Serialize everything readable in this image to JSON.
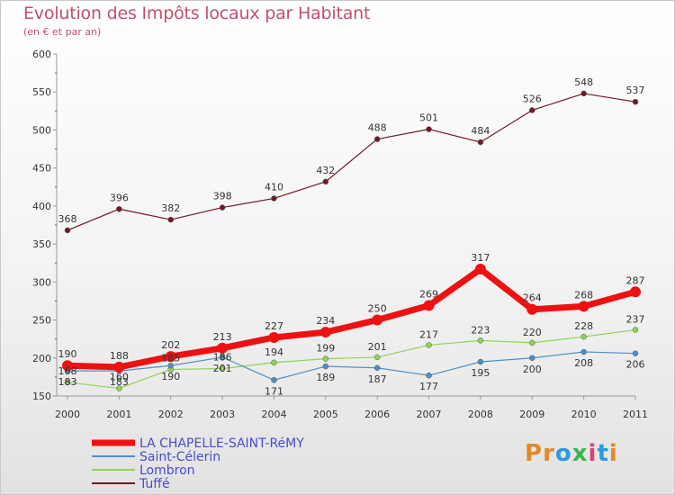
{
  "header": {
    "title": "Evolution des Impôts locaux par Habitant",
    "subtitle": "(en € et par an)"
  },
  "logo": {
    "text": "Proxiti",
    "letter_colors": [
      "#e08a2c",
      "#e08a2c",
      "#2a9be0",
      "#3bb54a",
      "#e04070",
      "#2a9be0",
      "#e08a2c"
    ]
  },
  "chart_data": {
    "type": "line",
    "x": [
      "2000",
      "2001",
      "2002",
      "2003",
      "2004",
      "2005",
      "2006",
      "2007",
      "2008",
      "2009",
      "2010",
      "2011"
    ],
    "ylim": [
      150,
      600
    ],
    "yticks": [
      150,
      200,
      250,
      300,
      350,
      400,
      450,
      500,
      550,
      600
    ],
    "grid": false,
    "legend_position": "bottom-left",
    "series": [
      {
        "name": "Tuffé",
        "color": "#6e1a28",
        "values": [
          368,
          396,
          382,
          398,
          410,
          432,
          488,
          501,
          484,
          526,
          548,
          537
        ]
      },
      {
        "name": "LA CHAPELLE-SAINT-RéMY",
        "color": "#ee1111",
        "values": [
          190,
          188,
          202,
          213,
          227,
          234,
          250,
          269,
          317,
          264,
          268,
          287
        ]
      },
      {
        "name": "Lombron",
        "color": "#8fd35a",
        "values": [
          168,
          160,
          185,
          186,
          194,
          199,
          201,
          217,
          223,
          220,
          228,
          237
        ]
      },
      {
        "name": "Saint-Célerin",
        "color": "#4d8fc8",
        "values": [
          183,
          183,
          190,
          201,
          171,
          189,
          187,
          177,
          195,
          200,
          208,
          206
        ]
      }
    ],
    "data_labels": [
      [
        "368",
        "396",
        "382",
        "398",
        "410",
        "432",
        "488",
        "501",
        "484",
        "526",
        "548",
        "537"
      ],
      [
        "190",
        "188",
        "202",
        "213",
        "227",
        "234",
        "250",
        "269",
        "317",
        "264",
        "268",
        "287"
      ],
      [
        "168",
        "160",
        "185",
        "186",
        "194",
        "199",
        "201",
        "217",
        "223",
        "220",
        "228",
        "237"
      ],
      [
        "183",
        "183",
        "190",
        "201",
        "171",
        "189",
        "187",
        "177",
        "195",
        "200",
        "208",
        "206"
      ]
    ],
    "legend": [
      {
        "label": "LA CHAPELLE-SAINT-RéMY",
        "color": "#ee1111"
      },
      {
        "label": "Saint-Célerin",
        "color": "#4d8fc8"
      },
      {
        "label": "Lombron",
        "color": "#8fd35a"
      },
      {
        "label": "Tuffé",
        "color": "#6e1a28"
      }
    ]
  }
}
